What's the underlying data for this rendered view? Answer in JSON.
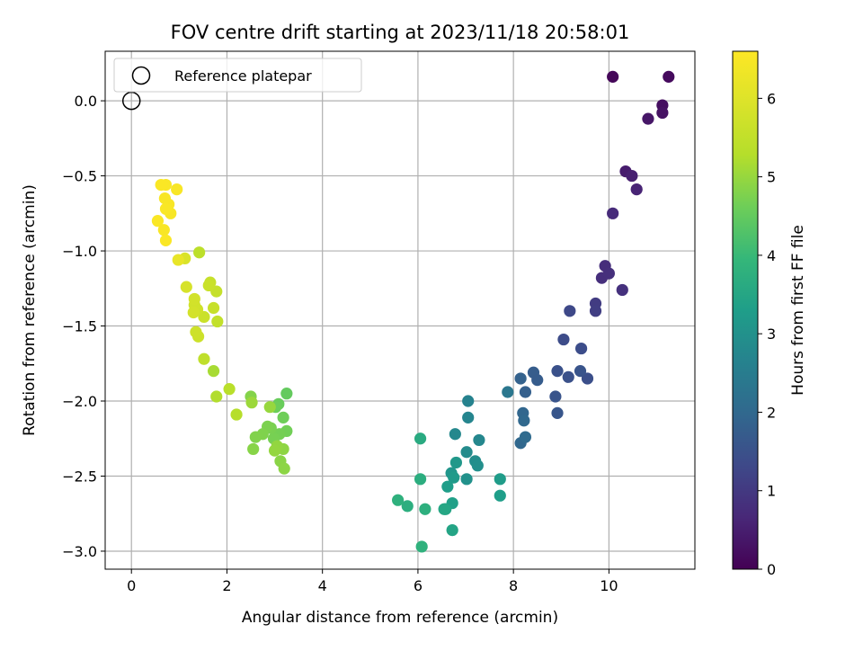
{
  "chart_data": {
    "type": "scatter",
    "title": "FOV centre drift starting at 2023/11/18 20:58:01",
    "xlabel": "Angular distance from reference (arcmin)",
    "ylabel": "Rotation from reference (arcmin)",
    "xlim": [
      -0.55,
      11.8
    ],
    "ylim": [
      -3.12,
      0.33
    ],
    "xticks": [
      0,
      2,
      4,
      6,
      8,
      10
    ],
    "xtick_labels": [
      "0",
      "2",
      "4",
      "6",
      "8",
      "10"
    ],
    "yticks": [
      0.0,
      -0.5,
      -1.0,
      -1.5,
      -2.0,
      -2.5,
      -3.0
    ],
    "ytick_labels": [
      "0.0",
      "−0.5",
      "−1.0",
      "−1.5",
      "−2.0",
      "−2.5",
      "−3.0"
    ],
    "grid": true,
    "legend": {
      "position": "top-left",
      "entries": [
        "Reference platepar"
      ]
    },
    "reference_point": {
      "x": 0.0,
      "y": 0.0,
      "marker": "open-circle"
    },
    "colorbar": {
      "label": "Hours from first FF file",
      "colormap": "viridis",
      "range": [
        0,
        6.6
      ],
      "ticks": [
        0,
        1,
        2,
        3,
        4,
        5,
        6
      ],
      "tick_labels": [
        "0",
        "1",
        "2",
        "3",
        "4",
        "5",
        "6"
      ]
    },
    "series": [
      {
        "x": [
          10.08,
          11.25,
          11.12,
          11.12,
          10.82,
          10.35,
          10.48,
          10.58,
          10.08,
          9.92,
          9.85,
          10.0,
          10.28,
          9.72,
          9.72,
          9.18,
          9.05,
          9.42,
          8.92,
          9.55,
          9.4,
          9.15,
          8.88,
          8.92,
          8.42,
          8.5,
          8.15,
          8.25,
          8.2,
          8.22,
          8.15,
          8.25,
          7.88,
          7.05,
          7.05,
          6.78,
          7.28,
          7.02,
          7.2,
          7.25,
          7.02,
          6.7,
          6.8,
          6.75,
          6.62,
          6.72,
          6.58,
          6.55,
          6.72,
          7.72,
          7.72,
          6.05,
          6.05,
          6.15,
          5.78,
          5.58,
          6.08,
          3.25,
          3.08,
          3.02,
          3.18,
          3.25,
          3.1,
          2.98,
          2.92,
          2.85,
          2.75,
          2.6,
          2.5,
          2.55,
          3.12,
          3.2,
          3.18,
          3.05,
          3.0,
          2.9,
          2.52,
          2.2,
          2.05,
          1.78,
          1.52,
          1.72,
          1.8,
          1.72,
          1.78,
          1.65,
          1.62,
          1.52,
          1.4,
          1.35,
          1.38,
          1.32,
          1.32,
          1.3,
          1.42,
          1.15,
          1.12,
          0.98,
          0.95,
          0.72,
          0.62,
          0.7,
          0.82,
          0.78,
          0.72,
          0.55,
          0.68,
          0.72
        ],
        "y": [
          0.16,
          0.16,
          -0.03,
          -0.08,
          -0.12,
          -0.47,
          -0.5,
          -0.59,
          -0.75,
          -1.1,
          -1.18,
          -1.15,
          -1.26,
          -1.35,
          -1.4,
          -1.4,
          -1.59,
          -1.65,
          -1.8,
          -1.85,
          -1.8,
          -1.84,
          -1.97,
          -2.08,
          -1.81,
          -1.86,
          -1.85,
          -1.94,
          -2.08,
          -2.13,
          -2.28,
          -2.24,
          -1.94,
          -2.0,
          -2.11,
          -2.22,
          -2.26,
          -2.34,
          -2.4,
          -2.43,
          -2.52,
          -2.48,
          -2.41,
          -2.51,
          -2.57,
          -2.68,
          -2.72,
          -2.72,
          -2.86,
          -2.52,
          -2.63,
          -2.25,
          -2.52,
          -2.72,
          -2.7,
          -2.66,
          -2.97,
          -1.95,
          -2.02,
          -2.04,
          -2.11,
          -2.2,
          -2.22,
          -2.25,
          -2.18,
          -2.17,
          -2.22,
          -2.24,
          -1.97,
          -2.32,
          -2.4,
          -2.45,
          -2.32,
          -2.3,
          -2.33,
          -2.04,
          -2.01,
          -2.09,
          -1.92,
          -1.97,
          -1.72,
          -1.8,
          -1.47,
          -1.38,
          -1.27,
          -1.21,
          -1.23,
          -1.44,
          -1.57,
          -1.54,
          -1.39,
          -1.36,
          -1.32,
          -1.41,
          -1.01,
          -1.24,
          -1.05,
          -1.06,
          -0.59,
          -0.56,
          -0.56,
          -0.65,
          -0.75,
          -0.69,
          -0.72,
          -0.8,
          -0.86,
          -0.93
        ],
        "c": [
          0.1,
          0.16,
          0.22,
          0.28,
          0.35,
          0.45,
          0.52,
          0.6,
          0.72,
          0.78,
          0.8,
          0.82,
          0.84,
          1.05,
          1.1,
          1.3,
          1.38,
          1.4,
          1.5,
          1.45,
          1.55,
          1.48,
          1.55,
          1.6,
          1.75,
          1.72,
          1.85,
          1.8,
          1.95,
          2.0,
          1.98,
          2.05,
          2.35,
          2.65,
          2.7,
          2.78,
          2.75,
          2.85,
          2.9,
          2.95,
          3.0,
          3.1,
          3.15,
          3.2,
          3.3,
          3.35,
          3.45,
          3.5,
          3.45,
          3.25,
          3.3,
          3.62,
          3.7,
          3.75,
          3.72,
          3.78,
          3.8,
          4.5,
          4.55,
          4.6,
          4.62,
          4.65,
          4.68,
          4.7,
          4.72,
          4.75,
          4.78,
          4.8,
          4.82,
          4.85,
          4.88,
          4.9,
          4.92,
          4.95,
          4.97,
          5.0,
          5.05,
          5.3,
          5.35,
          5.25,
          5.45,
          5.15,
          5.5,
          5.6,
          5.55,
          5.58,
          5.62,
          5.65,
          5.68,
          5.7,
          5.72,
          5.75,
          5.78,
          5.8,
          5.4,
          5.85,
          5.9,
          6.2,
          6.5,
          6.52,
          6.55,
          6.5,
          6.48,
          6.5,
          6.52,
          6.55,
          6.5,
          6.55
        ]
      }
    ]
  }
}
